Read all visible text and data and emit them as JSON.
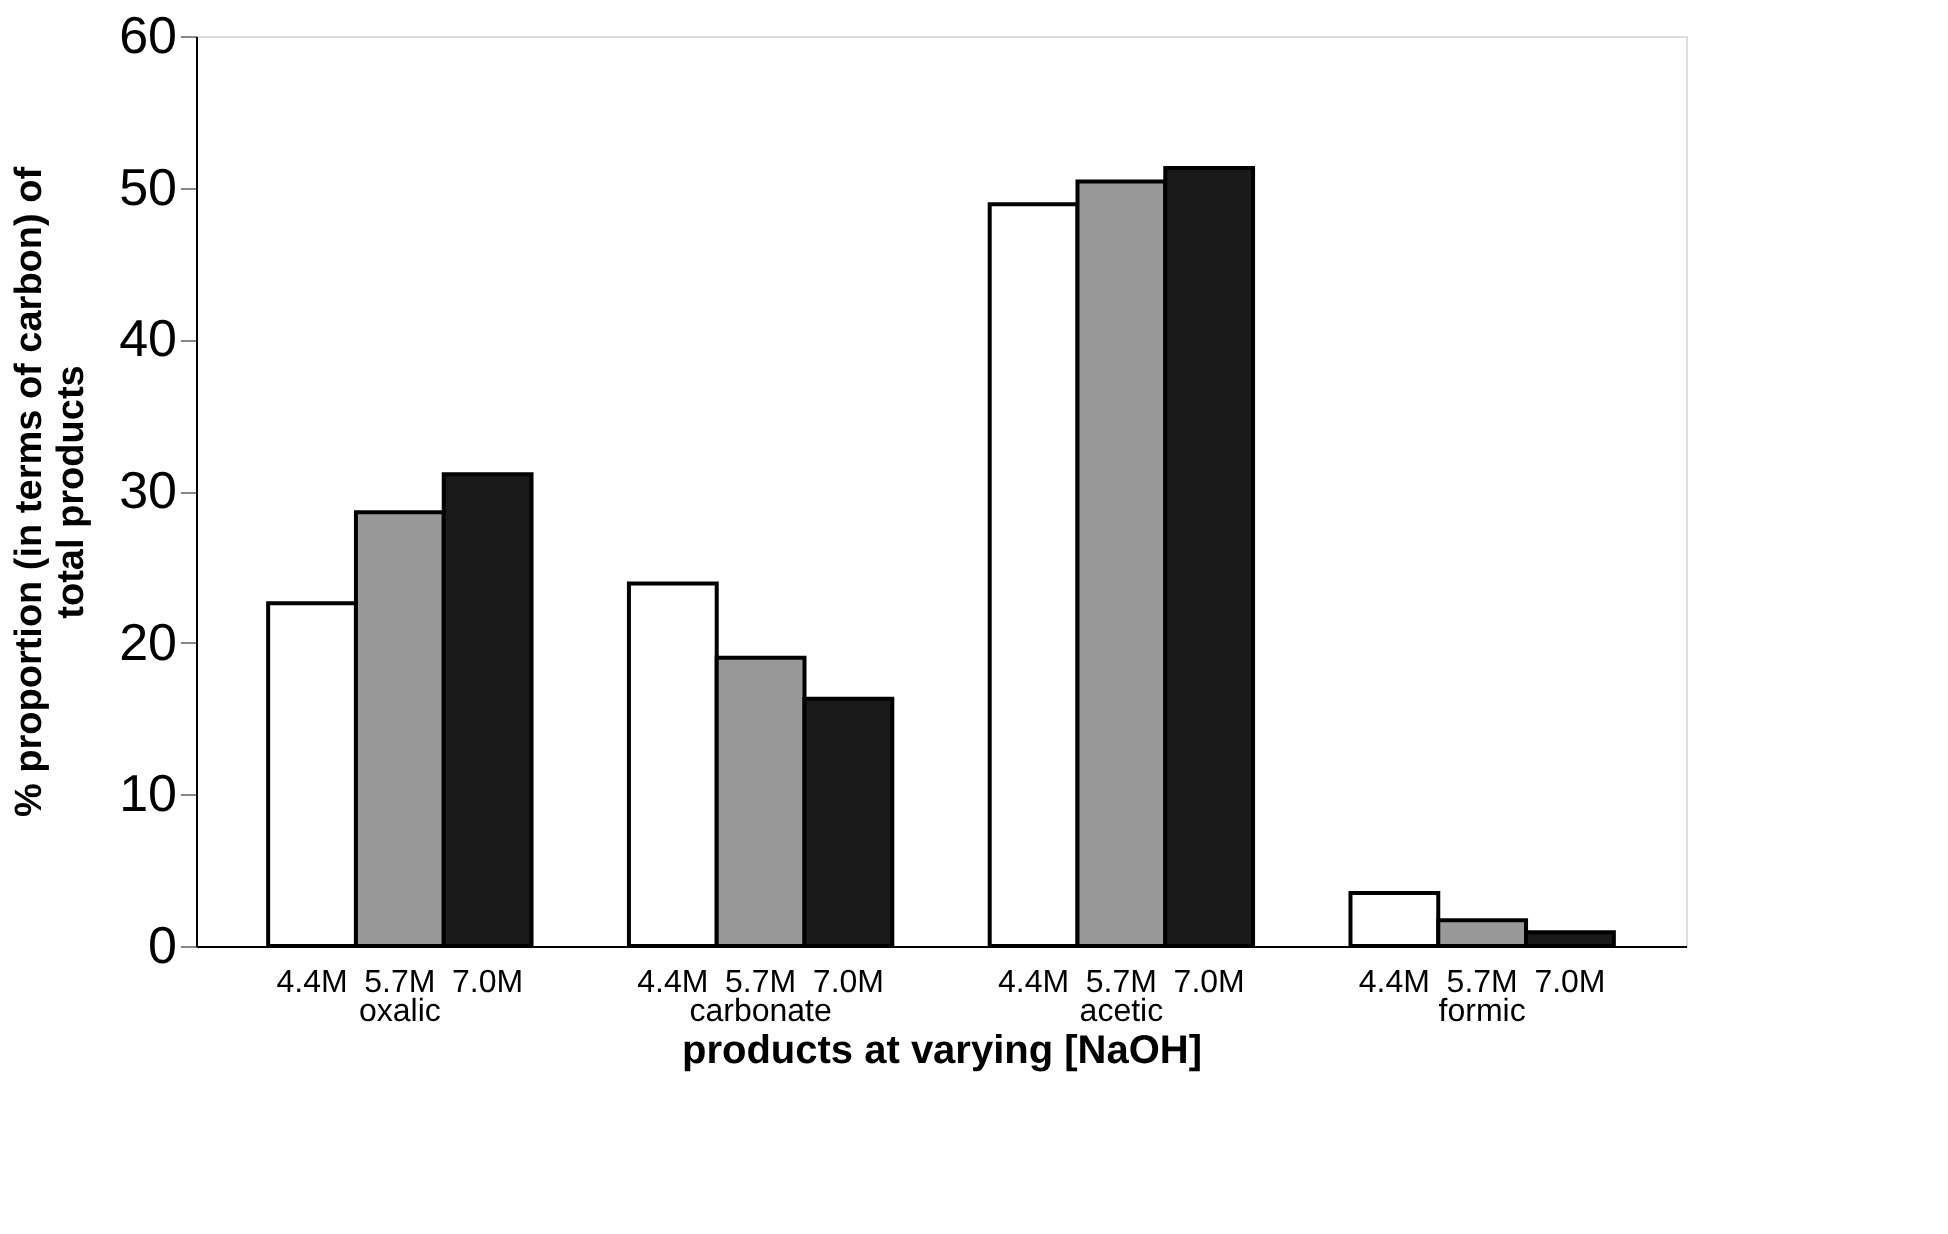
{
  "chart_data": {
    "type": "bar",
    "xlabel": "products at varying [NaOH]",
    "ylabel": "% proportion (in terms of carbon) of\ntotal products",
    "categories": [
      "oxalic",
      "carbonate",
      "acetic",
      "formic"
    ],
    "series": [
      {
        "name": "4.4M",
        "color": "#ffffff",
        "values": [
          22.6,
          23.9,
          48.9,
          3.5
        ]
      },
      {
        "name": "5.7M",
        "color": "#999999",
        "values": [
          28.6,
          19.0,
          50.4,
          1.7
        ]
      },
      {
        "name": "7.0M",
        "color": "#1a1a1a",
        "values": [
          31.1,
          16.3,
          51.3,
          0.9
        ]
      }
    ],
    "ylim": [
      0,
      60
    ],
    "yticks": [
      0,
      10,
      20,
      30,
      40,
      50,
      60
    ],
    "grid": false,
    "legend": false
  }
}
